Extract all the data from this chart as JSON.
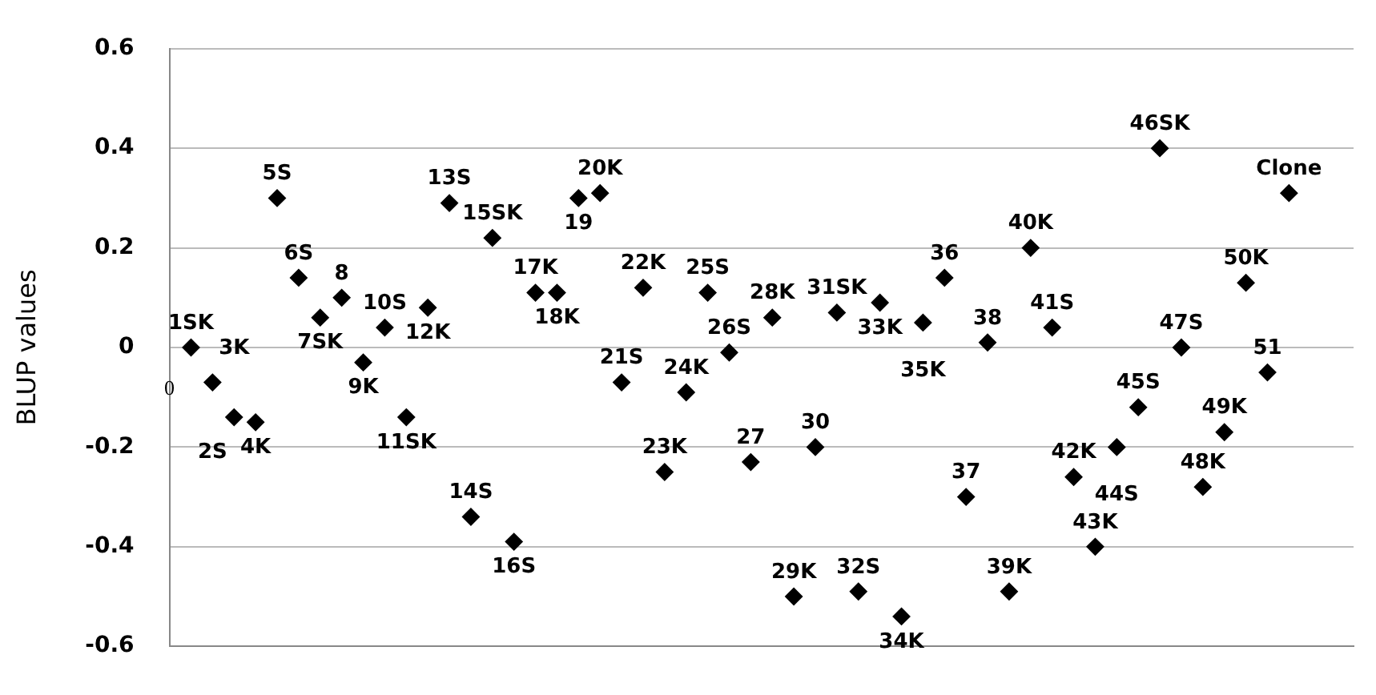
{
  "chart_data": {
    "type": "scatter",
    "ylabel": "BLUP values",
    "categories": [
      "1SK",
      "2S",
      "3K",
      "4K",
      "5S",
      "6S",
      "7SK",
      "8",
      "9K",
      "10S",
      "11SK",
      "12K",
      "13S",
      "14S",
      "15SK",
      "16S",
      "17K",
      "18K",
      "19",
      "20K",
      "21S",
      "22K",
      "23K",
      "24K",
      "25S",
      "26S",
      "27",
      "28K",
      "29K",
      "30",
      "31SK",
      "32S",
      "33K",
      "34K",
      "35K",
      "36",
      "37",
      "38",
      "39K",
      "40K",
      "41S",
      "42K",
      "43K",
      "44S",
      "45S",
      "46SK",
      "47S",
      "48K",
      "49K",
      "50K",
      "51",
      "Clone"
    ],
    "series": [
      {
        "color": "#000000",
        "values": [
          0.0,
          -0.07,
          -0.14,
          -0.15,
          0.3,
          0.14,
          0.06,
          0.1,
          -0.03,
          0.04,
          -0.14,
          0.08,
          0.29,
          -0.34,
          0.22,
          -0.39,
          0.11,
          0.11,
          0.3,
          0.31,
          -0.07,
          0.12,
          -0.25,
          -0.09,
          0.11,
          -0.01,
          -0.23,
          0.06,
          -0.5,
          -0.2,
          0.07,
          -0.49,
          0.09,
          -0.54,
          0.05,
          0.14,
          -0.3,
          0.01,
          -0.49,
          0.2,
          0.04,
          -0.26,
          -0.4,
          -0.2,
          -0.12,
          0.4,
          0.0,
          -0.28,
          -0.17,
          0.13,
          -0.05,
          0.31
        ]
      }
    ],
    "ylim": [
      -0.6,
      0.6
    ],
    "yticks": [
      -0.6,
      -0.4,
      -0.2,
      0,
      0.2,
      0.4,
      0.6
    ],
    "grid": "y",
    "legend": false,
    "marker": "diamond",
    "tick_labels": "y",
    "annotations": [
      "0"
    ]
  }
}
